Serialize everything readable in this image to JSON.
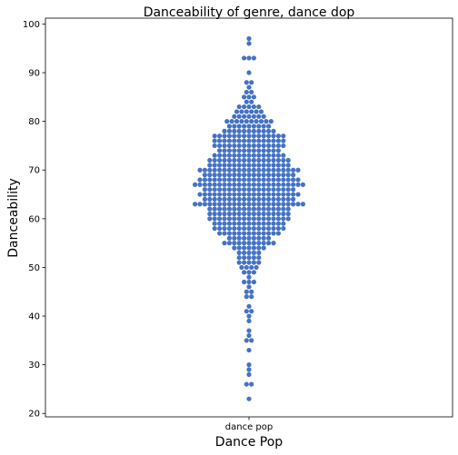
{
  "chart_data": {
    "type": "scatter",
    "subtype": "swarm",
    "title": "Danceability of genre, dance dop",
    "xlabel": "Dance Pop",
    "ylabel": "Danceability",
    "categories": [
      "dance pop"
    ],
    "yticks": [
      20,
      30,
      40,
      50,
      60,
      70,
      80,
      90,
      100
    ],
    "ylim": [
      19.3,
      101.2
    ],
    "grid": false,
    "point_color": "#4472c4",
    "series": [
      {
        "category": "dance pop",
        "counts": {
          "97": 1,
          "96": 1,
          "93": 3,
          "90": 1,
          "88": 2,
          "87": 1,
          "86": 2,
          "85": 3,
          "84": 2,
          "83": 5,
          "82": 6,
          "81": 7,
          "80": 10,
          "79": 9,
          "78": 11,
          "77": 15,
          "76": 15,
          "75": 15,
          "74": 13,
          "73": 15,
          "72": 17,
          "71": 17,
          "70": 21,
          "69": 19,
          "68": 21,
          "67": 23,
          "66": 19,
          "65": 21,
          "64": 19,
          "63": 23,
          "62": 17,
          "61": 17,
          "60": 17,
          "59": 15,
          "58": 15,
          "57": 13,
          "56": 9,
          "55": 11,
          "54": 7,
          "53": 5,
          "52": 5,
          "51": 5,
          "50": 4,
          "49": 3,
          "48": 1,
          "47": 3,
          "46": 1,
          "45": 2,
          "44": 2,
          "42": 1,
          "41": 2,
          "40": 1,
          "39": 1,
          "37": 1,
          "36": 1,
          "35": 2,
          "33": 1,
          "30": 1,
          "29": 1,
          "28": 1,
          "26": 2,
          "23": 1
        }
      }
    ]
  }
}
